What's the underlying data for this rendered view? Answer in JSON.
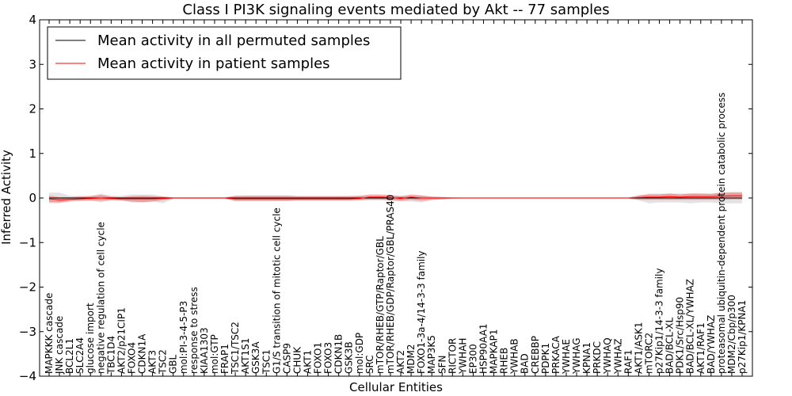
{
  "chart_data": {
    "type": "line",
    "title": "Class I PI3K signaling events mediated by Akt -- 77 samples",
    "xlabel": "Cellular Entities",
    "ylabel": "Inferred Activity",
    "ylim": [
      -4,
      4
    ],
    "yticks": [
      -4,
      -3,
      -2,
      -1,
      0,
      1,
      2,
      3,
      4
    ],
    "ytick_labels": [
      "−4",
      "−3",
      "−2",
      "−1",
      "0",
      "1",
      "2",
      "3",
      "4"
    ],
    "legend_position": "top-left",
    "grid": false,
    "categories": [
      "MAPKKK cascade",
      "JNK cascade",
      "BCL2L1",
      "SLC2A4",
      "glucose import",
      "negative regulation of cell cycle",
      "TBC1D4",
      "AKT2/p21CIP1",
      "FOXO4",
      "CDKN1A",
      "AKT3",
      "TSC2",
      "GBL",
      "mol:PI-3-4-5-P3",
      "response to stress",
      "KIAA1303",
      "mol:GTP",
      "FRAP1",
      "TSC1/TSC2",
      "AKT1S1",
      "GSK3A",
      "TSC1",
      "G1/S transition of mitotic cell cycle",
      "CASP9",
      "CHUK",
      "AKT1",
      "FOXO1",
      "FOXO3",
      "CDKN1B",
      "GSK3B",
      "mol:GDP",
      "SRC",
      "mTOR/RHEB/GTP/Raptor/GBL",
      "mTOR/RHEB/GDP/Raptor/GBL/PRAS40",
      "AKT2",
      "MDM2",
      "FOXO1-3a-4/14-3-3 family",
      "MAP3K5",
      "SFN",
      "RICTOR",
      "YWHAH",
      "EP300",
      "HSP90AA1",
      "MAPKAP1",
      "RHEB",
      "YWHAB",
      "BAD",
      "CREBBP",
      "PDPK1",
      "PRKACA",
      "YWHAE",
      "YWHAG",
      "KPNA1",
      "PRKDC",
      "YWHAQ",
      "YWHAZ",
      "RAF1",
      "AKT1/ASK1",
      "mTORC2",
      "p27Kip1/14-3-3 family",
      "BAD/BCL-XL",
      "PDK1/Src/Hsp90",
      "BAD/BCL-XL/YWHAZ",
      "AKT1/RAF1",
      "BAD/YWHAZ",
      "proteasomal ubiquitin-dependent protein catabolic process",
      "MDM2/Cbp/p300",
      "p27Kip1/KPNA1"
    ],
    "series": [
      {
        "name": "Mean activity in all permuted samples",
        "color": "#000000",
        "values": [
          0,
          0,
          0,
          0,
          0,
          0,
          0,
          0,
          0,
          0,
          0,
          0,
          0,
          0,
          0,
          0,
          0,
          0,
          0,
          0,
          0,
          0,
          0,
          0,
          0,
          0,
          0,
          0,
          0,
          0,
          0,
          0,
          0,
          0,
          0,
          0,
          0,
          0,
          0,
          0,
          0,
          0,
          0,
          0,
          0,
          0,
          0,
          0,
          0,
          0,
          0,
          0,
          0,
          0,
          0,
          0,
          0,
          0,
          0,
          0,
          0,
          0,
          0,
          0,
          0,
          0,
          0,
          0
        ],
        "band_upper": [
          0.12,
          0.12,
          0.05,
          0.05,
          0.05,
          0.1,
          0.05,
          0.05,
          0.08,
          0.08,
          0.08,
          0.04,
          0.02,
          0.02,
          0.02,
          0.02,
          0.02,
          0.02,
          0.05,
          0.06,
          0.06,
          0.06,
          0.06,
          0.06,
          0.05,
          0.05,
          0.05,
          0.05,
          0.05,
          0.05,
          0.05,
          0.05,
          0.05,
          0.05,
          0.05,
          0.05,
          0.05,
          0.03,
          0.03,
          0.02,
          0.01,
          0.01,
          0.01,
          0.01,
          0.01,
          0.01,
          0.01,
          0.01,
          0.01,
          0.01,
          0.01,
          0.01,
          0.01,
          0.01,
          0.01,
          0.01,
          0.01,
          0.05,
          0.1,
          0.1,
          0.1,
          0.1,
          0.1,
          0.1,
          0.1,
          0.12,
          0.14,
          0.14
        ],
        "band_lower": [
          -0.12,
          -0.12,
          -0.05,
          -0.05,
          -0.05,
          -0.1,
          -0.05,
          -0.05,
          -0.1,
          -0.1,
          -0.08,
          -0.12,
          -0.02,
          -0.02,
          -0.02,
          -0.02,
          -0.02,
          -0.02,
          -0.06,
          -0.06,
          -0.06,
          -0.06,
          -0.06,
          -0.06,
          -0.05,
          -0.05,
          -0.05,
          -0.05,
          -0.05,
          -0.05,
          -0.05,
          -0.05,
          -0.05,
          -0.05,
          -0.08,
          -0.08,
          -0.1,
          -0.05,
          -0.03,
          -0.02,
          -0.01,
          -0.01,
          -0.01,
          -0.01,
          -0.01,
          -0.01,
          -0.01,
          -0.01,
          -0.01,
          -0.01,
          -0.01,
          -0.01,
          -0.01,
          -0.01,
          -0.01,
          -0.01,
          -0.01,
          -0.05,
          -0.12,
          -0.1,
          -0.1,
          -0.1,
          -0.12,
          -0.1,
          -0.1,
          -0.12,
          -0.12,
          -0.12
        ]
      },
      {
        "name": "Mean activity in patient samples",
        "color": "#ff0000",
        "values": [
          -0.02,
          -0.04,
          -0.03,
          -0.02,
          -0.01,
          0,
          -0.01,
          -0.02,
          -0.02,
          -0.02,
          -0.02,
          -0.01,
          0,
          0,
          0,
          0,
          0,
          0,
          -0.02,
          -0.02,
          -0.02,
          -0.02,
          -0.02,
          -0.02,
          -0.02,
          -0.02,
          -0.02,
          -0.02,
          -0.02,
          -0.02,
          -0.01,
          0.02,
          0.02,
          0.01,
          -0.01,
          0.02,
          0,
          0,
          0,
          0,
          0,
          0,
          0,
          0,
          0,
          0,
          0,
          0,
          0,
          0,
          0,
          0,
          0,
          0,
          0,
          0,
          0,
          0.01,
          0.02,
          0.02,
          0.03,
          0.02,
          0.03,
          0.03,
          0.03,
          0.04,
          0.05,
          0.05
        ],
        "band_upper": [
          0.05,
          0.02,
          0.02,
          0.03,
          0.04,
          0.07,
          0.03,
          0.02,
          0.04,
          0.05,
          0.04,
          0.03,
          0.01,
          0.01,
          0.01,
          0.01,
          0.01,
          0.01,
          0.05,
          0.05,
          0.05,
          0.05,
          0.05,
          0.05,
          0.04,
          0.04,
          0.04,
          0.04,
          0.04,
          0.04,
          0.05,
          0.08,
          0.08,
          0.07,
          0.04,
          0.08,
          0.06,
          0.03,
          0.02,
          0.01,
          0.01,
          0.01,
          0.01,
          0.01,
          0.01,
          0.01,
          0.01,
          0.01,
          0.01,
          0.01,
          0.01,
          0.01,
          0.01,
          0.01,
          0.01,
          0.01,
          0.01,
          0.06,
          0.08,
          0.08,
          0.1,
          0.08,
          0.1,
          0.1,
          0.09,
          0.12,
          0.12,
          0.12
        ],
        "band_lower": [
          -0.09,
          -0.1,
          -0.08,
          -0.07,
          -0.06,
          -0.06,
          -0.05,
          -0.06,
          -0.08,
          -0.09,
          -0.08,
          -0.05,
          -0.01,
          -0.01,
          -0.01,
          -0.01,
          -0.01,
          -0.01,
          -0.07,
          -0.07,
          -0.07,
          -0.07,
          -0.07,
          -0.07,
          -0.06,
          -0.06,
          -0.06,
          -0.06,
          -0.06,
          -0.06,
          -0.05,
          -0.04,
          -0.04,
          -0.05,
          -0.06,
          -0.04,
          -0.06,
          -0.04,
          -0.03,
          -0.01,
          -0.01,
          -0.01,
          -0.01,
          -0.01,
          -0.01,
          -0.01,
          -0.01,
          -0.01,
          -0.01,
          -0.01,
          -0.01,
          -0.01,
          -0.01,
          -0.01,
          -0.01,
          -0.01,
          -0.01,
          -0.04,
          -0.04,
          -0.04,
          -0.04,
          -0.04,
          -0.04,
          -0.04,
          -0.04,
          -0.04,
          -0.03,
          -0.03
        ]
      }
    ]
  }
}
